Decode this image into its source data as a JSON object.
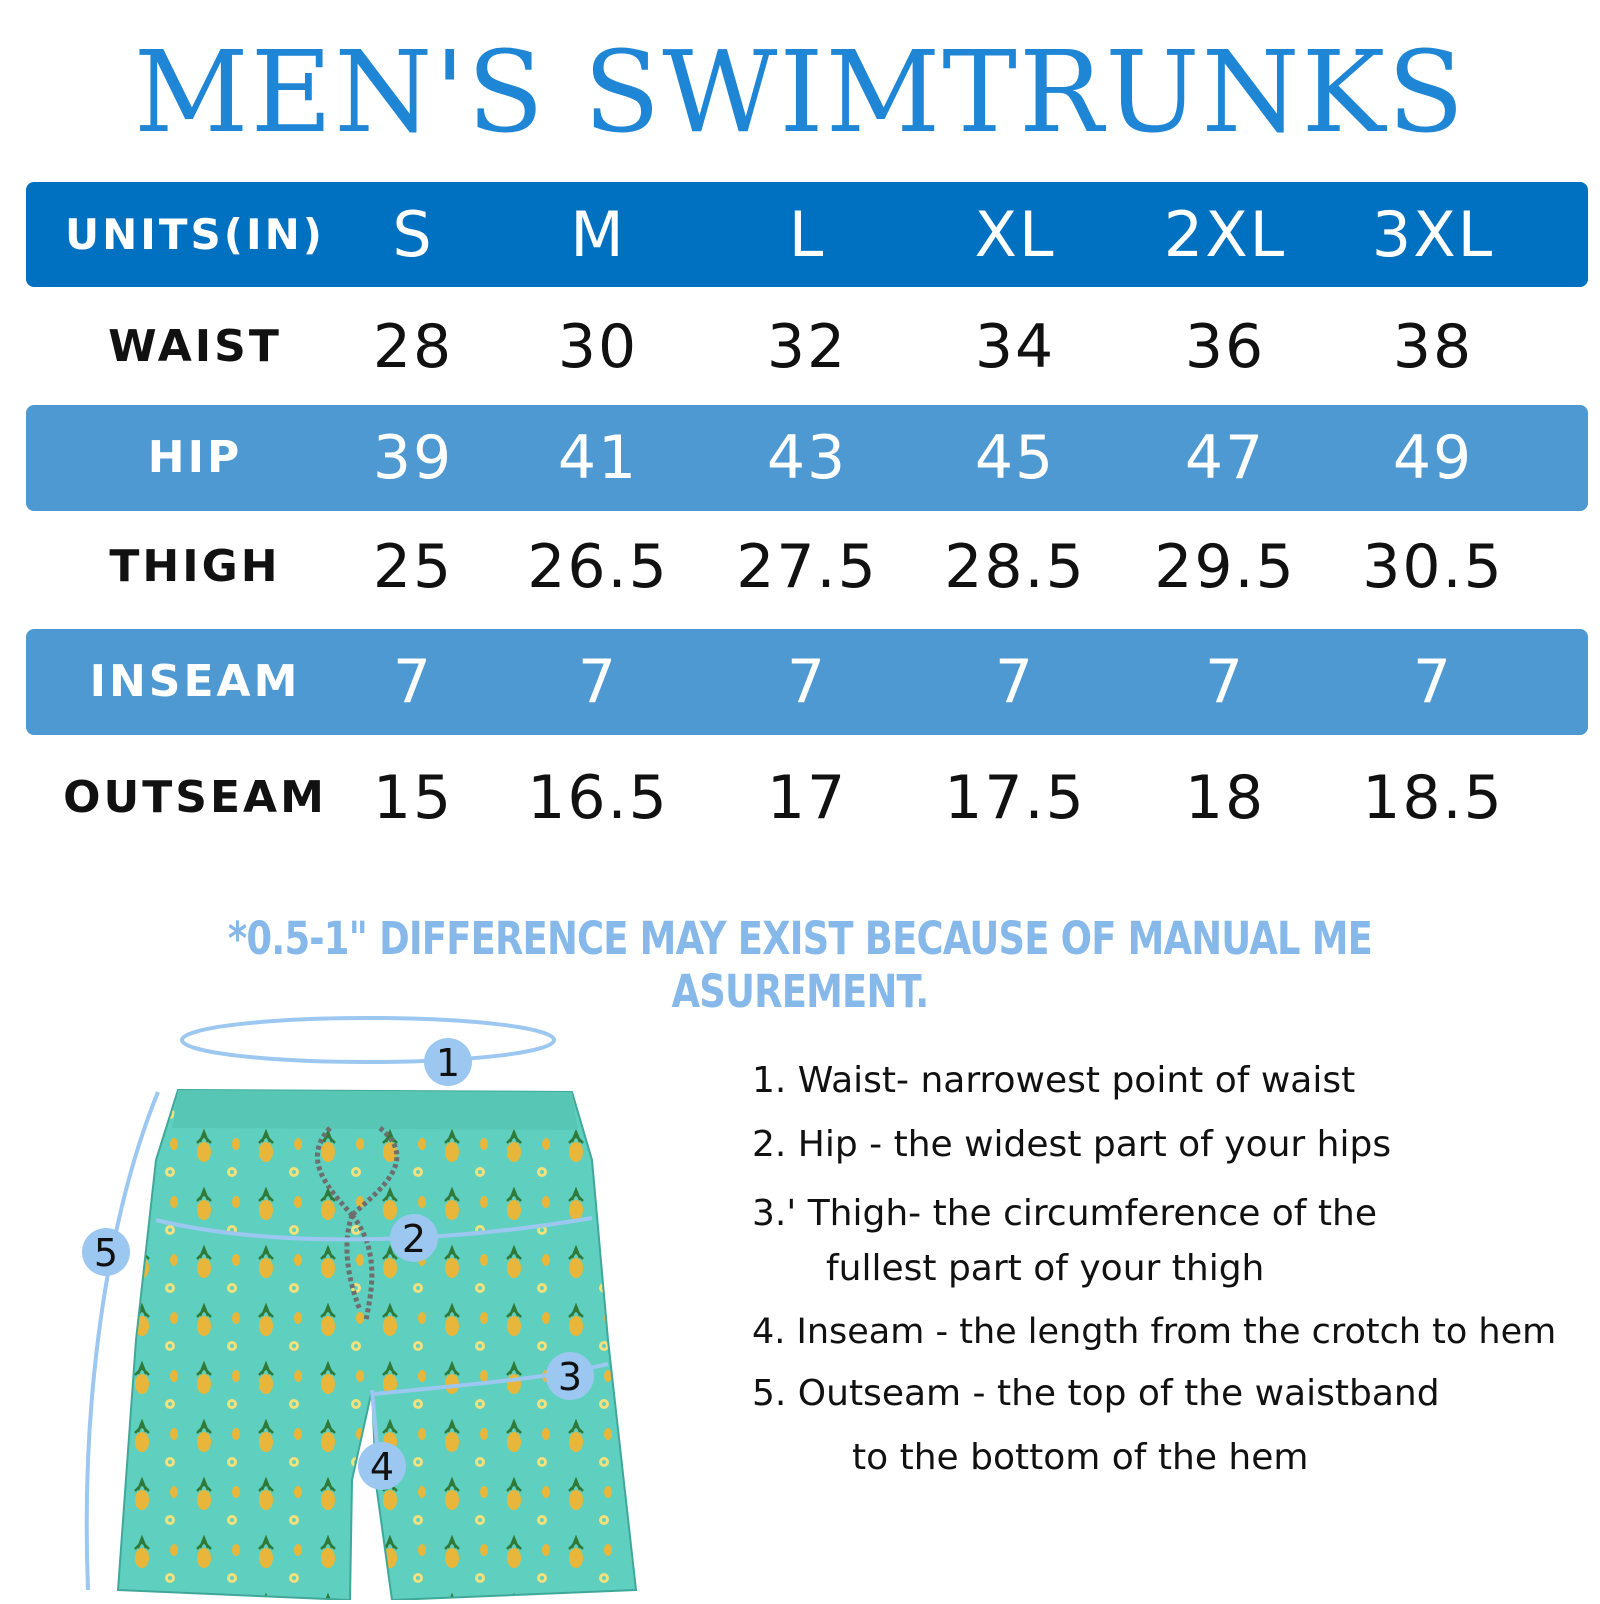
{
  "title": "MEN'S SWIMTRUNKS",
  "size_chart": {
    "header": {
      "label": "UNITS(IN)",
      "sizes": [
        "S",
        "M",
        "L",
        "XL",
        "2XL",
        "3XL"
      ]
    },
    "rows": [
      {
        "label": "WAIST",
        "values": [
          "28",
          "30",
          "32",
          "34",
          "36",
          "38"
        ]
      },
      {
        "label": "HIP",
        "values": [
          "39",
          "41",
          "43",
          "45",
          "47",
          "49"
        ]
      },
      {
        "label": "THIGH",
        "values": [
          "25",
          "26.5",
          "27.5",
          "28.5",
          "29.5",
          "30.5"
        ]
      },
      {
        "label": "INSEAM",
        "values": [
          "7",
          "7",
          "7",
          "7",
          "7",
          "7"
        ]
      },
      {
        "label": "OUTSEAM",
        "values": [
          "15",
          "16.5",
          "17",
          "17.5",
          "18",
          "18.5"
        ]
      }
    ]
  },
  "note": "*0.5-1\" DIFFERENCE MAY EXIST BECAUSE OF MANUAL ME ASUREMENT.",
  "diagram": {
    "markers": [
      "1",
      "2",
      "3",
      "4",
      "5"
    ],
    "icon": "pineapple-print-swim-trunks-illustration"
  },
  "instructions": [
    "1. Waist- narrowest point of waist",
    "2. Hip - the widest part of your hips",
    "3.' Thigh- the circumference of the",
    "fullest part of your thigh",
    "4. Inseam - the length from the crotch to hem",
    "5. Outseam - the top of the waistband",
    "to the bottom of the hem"
  ],
  "colors": {
    "title": "#1f86d6",
    "header_band": "#0070c0",
    "alt_band": "#4e99d1",
    "note": "#86b9ea",
    "fabric": "#5fd0bf",
    "marker": "#9cc7f0"
  }
}
